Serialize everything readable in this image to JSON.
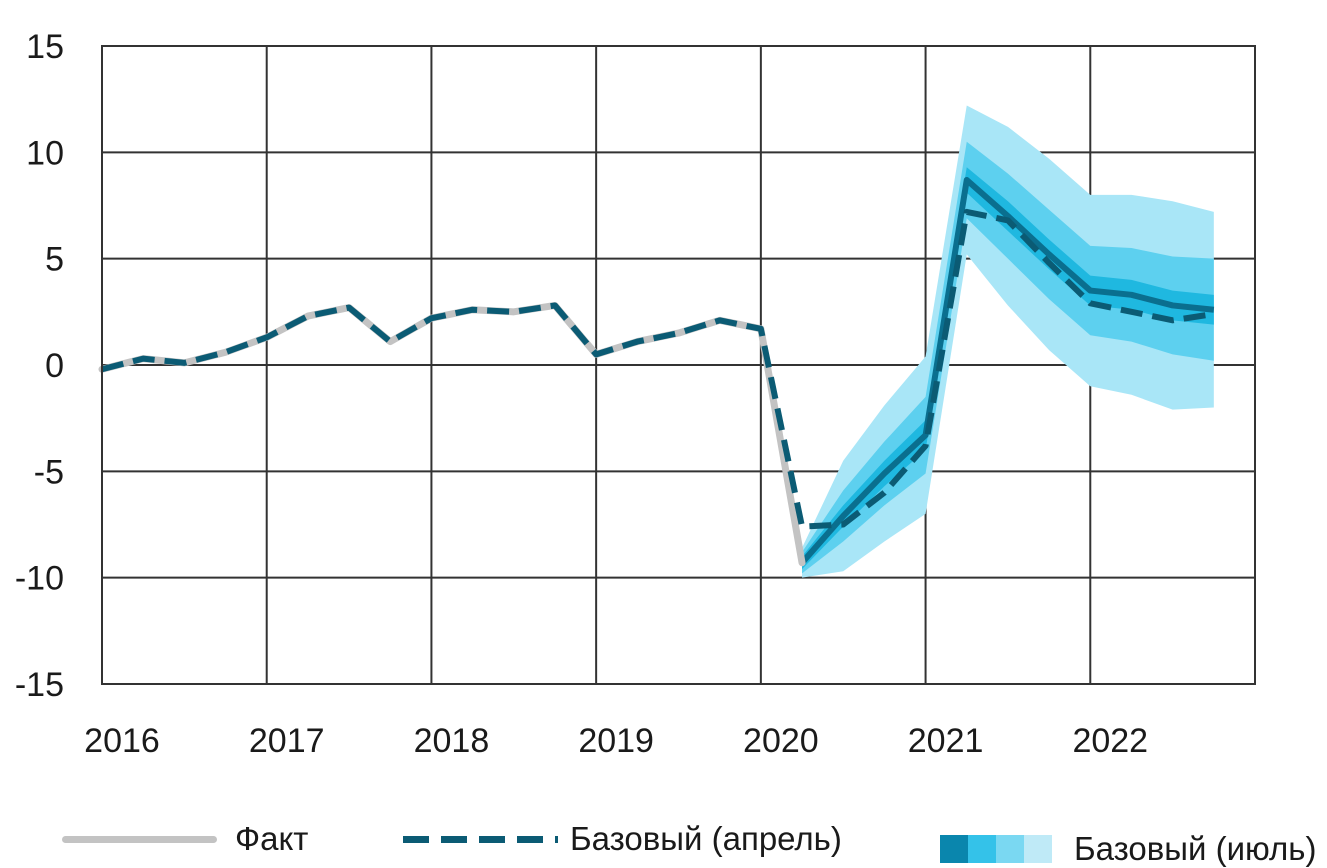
{
  "chart_data": {
    "type": "line",
    "x_ticks": [
      "2016",
      "2017",
      "2018",
      "2019",
      "2020",
      "2021",
      "2022"
    ],
    "y_ticks": [
      "15",
      "10",
      "5",
      "0",
      "-5",
      "-10",
      "-15"
    ],
    "ylim": [
      -15,
      15
    ],
    "xlim": [
      2016,
      2023
    ],
    "grid": true,
    "legend_position": "bottom",
    "colors": {
      "fact": "#c3c3c3",
      "april": "#0b5b74",
      "central": "#0a6f8f",
      "bands": [
        "#1fb8e0",
        "#5dd0ef",
        "#a9e6f7"
      ]
    },
    "series": [
      {
        "name": "Факт",
        "style": "solid-gray",
        "x": [
          2016.0,
          2016.25,
          2016.5,
          2016.75,
          2017.0,
          2017.25,
          2017.5,
          2017.75,
          2018.0,
          2018.25,
          2018.5,
          2018.75,
          2019.0,
          2019.25,
          2019.5,
          2019.75,
          2020.0,
          2020.25
        ],
        "values": [
          -0.2,
          0.3,
          0.1,
          0.6,
          1.3,
          2.3,
          2.7,
          1.1,
          2.2,
          2.6,
          2.5,
          2.8,
          0.5,
          1.1,
          1.5,
          2.1,
          1.7,
          -9.3
        ]
      },
      {
        "name": "Базовый (апрель)",
        "style": "dashed",
        "x": [
          2016.0,
          2016.25,
          2016.5,
          2016.75,
          2017.0,
          2017.25,
          2017.5,
          2017.75,
          2018.0,
          2018.25,
          2018.5,
          2018.75,
          2019.0,
          2019.25,
          2019.5,
          2019.75,
          2020.0,
          2020.25,
          2020.5,
          2020.75,
          2021.0,
          2021.25,
          2021.5,
          2021.75,
          2022.0,
          2022.25,
          2022.5,
          2022.75
        ],
        "values": [
          -0.2,
          0.3,
          0.1,
          0.6,
          1.3,
          2.3,
          2.7,
          1.1,
          2.2,
          2.6,
          2.5,
          2.8,
          0.5,
          1.1,
          1.5,
          2.1,
          1.7,
          -7.6,
          -7.5,
          -6.0,
          -3.8,
          7.2,
          6.8,
          4.8,
          2.9,
          2.5,
          2.1,
          2.4
        ]
      },
      {
        "name": "Базовый (июль)",
        "style": "fan",
        "x": [
          2020.25,
          2020.5,
          2020.75,
          2021.0,
          2021.25,
          2021.5,
          2021.75,
          2022.0,
          2022.25,
          2022.5,
          2022.75
        ],
        "values": [
          -9.3,
          -7.1,
          -5.1,
          -3.3,
          8.7,
          7.0,
          5.2,
          3.5,
          3.3,
          2.8,
          2.6
        ],
        "band_half_widths": [
          [
            0.3,
            0.5,
            0.6,
            0.7,
            0.6,
            0.7,
            0.7,
            0.7,
            0.7,
            0.7,
            0.7
          ],
          [
            0.5,
            1.2,
            1.5,
            1.8,
            1.8,
            2.0,
            2.1,
            2.1,
            2.2,
            2.3,
            2.4
          ],
          [
            0.7,
            2.6,
            3.2,
            3.7,
            3.5,
            4.2,
            4.5,
            4.5,
            4.7,
            4.9,
            4.6
          ]
        ]
      }
    ]
  },
  "legend": {
    "fact_label": "Факт",
    "april_label": "Базовый (апрель)",
    "july_label": "Базовый (июль)"
  }
}
